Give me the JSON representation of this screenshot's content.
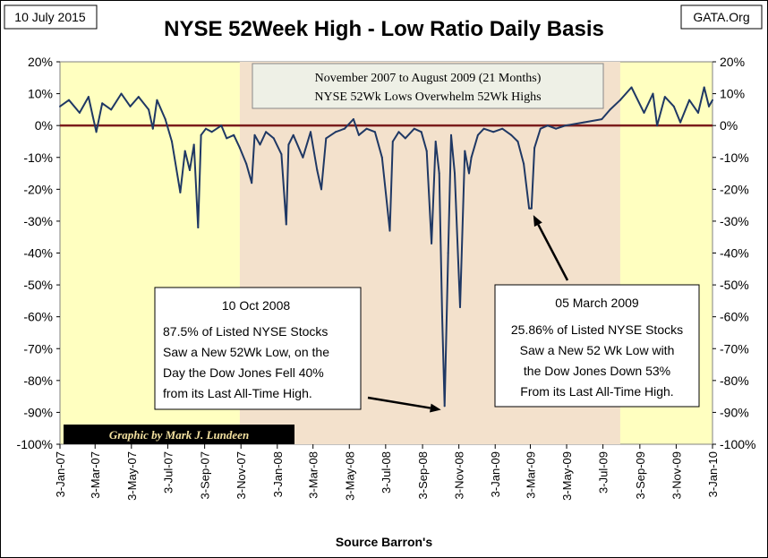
{
  "header": {
    "date_tag": "10 July 2015",
    "source_tag": "GATA.Org"
  },
  "chart_data": {
    "type": "line",
    "title": "NYSE 52Week High - Low Ratio Daily Basis",
    "xlabel": "Source Barron's",
    "ylabel": "",
    "ylim": [
      -100,
      20
    ],
    "xlim": [
      "2007-01-03",
      "2010-01-03"
    ],
    "y_ticks": [
      "20%",
      "10%",
      "0%",
      "-10%",
      "-20%",
      "-30%",
      "-40%",
      "-50%",
      "-60%",
      "-70%",
      "-80%",
      "-90%",
      "-100%"
    ],
    "x_ticks": [
      "3-Jan-07",
      "3-Mar-07",
      "3-May-07",
      "3-Jul-07",
      "3-Sep-07",
      "3-Nov-07",
      "3-Jan-08",
      "3-Mar-08",
      "3-May-08",
      "3-Jul-08",
      "3-Sep-08",
      "3-Nov-08",
      "3-Jan-09",
      "3-Mar-09",
      "3-May-09",
      "3-Jul-09",
      "3-Sep-09",
      "3-Nov-09",
      "3-Jan-10"
    ],
    "highlight_range": [
      "2007-11-01",
      "2009-08-01"
    ],
    "colors": {
      "plot_bg": "#ffffc0",
      "highlight": "#f3e1cc",
      "line": "#1f3864",
      "zero_line": "#7b1c1c"
    },
    "series": [
      {
        "x": [
          "2007-01-03",
          "2007-01-18",
          "2007-02-05",
          "2007-02-20",
          "2007-02-27",
          "2007-03-05",
          "2007-03-15",
          "2007-03-30",
          "2007-04-16",
          "2007-05-01",
          "2007-05-15",
          "2007-06-01",
          "2007-06-08",
          "2007-06-15",
          "2007-06-29",
          "2007-07-10",
          "2007-07-24",
          "2007-08-01",
          "2007-08-09",
          "2007-08-16",
          "2007-08-23",
          "2007-08-28",
          "2007-09-05",
          "2007-09-15",
          "2007-10-01",
          "2007-10-10",
          "2007-10-22",
          "2007-11-01",
          "2007-11-12",
          "2007-11-21",
          "2007-11-26",
          "2007-12-05",
          "2007-12-15",
          "2007-12-28",
          "2008-01-10",
          "2008-01-18",
          "2008-01-22",
          "2008-01-30",
          "2008-02-15",
          "2008-02-28",
          "2008-03-10",
          "2008-03-17",
          "2008-03-25",
          "2008-04-10",
          "2008-04-25",
          "2008-05-10",
          "2008-05-19",
          "2008-06-01",
          "2008-06-15",
          "2008-06-27",
          "2008-07-10",
          "2008-07-15",
          "2008-07-25",
          "2008-08-05",
          "2008-08-20",
          "2008-09-01",
          "2008-09-10",
          "2008-09-18",
          "2008-09-25",
          "2008-10-01",
          "2008-10-06",
          "2008-10-10",
          "2008-10-16",
          "2008-10-21",
          "2008-10-27",
          "2008-11-05",
          "2008-11-13",
          "2008-11-20",
          "2008-11-24",
          "2008-12-05",
          "2008-12-15",
          "2008-12-31",
          "2009-01-15",
          "2009-01-30",
          "2009-02-10",
          "2009-02-20",
          "2009-03-01",
          "2009-03-05",
          "2009-03-10",
          "2009-03-20",
          "2009-04-01",
          "2009-04-15",
          "2009-05-01",
          "2009-06-01",
          "2009-07-01",
          "2009-07-15",
          "2009-08-01",
          "2009-08-20",
          "2009-09-10",
          "2009-09-25",
          "2009-10-02",
          "2009-10-15",
          "2009-10-30",
          "2009-11-10",
          "2009-11-25",
          "2009-12-10",
          "2009-12-20",
          "2009-12-28",
          "2010-01-03"
        ],
        "values": [
          6,
          8,
          4,
          9,
          3,
          -2,
          7,
          5,
          10,
          6,
          9,
          5,
          -1,
          8,
          2,
          -5,
          -21,
          -8,
          -14,
          -6,
          -32,
          -3,
          -1,
          -2,
          0,
          -4,
          -3,
          -7,
          -12,
          -18,
          -3,
          -6,
          -2,
          -4,
          -9,
          -31,
          -6,
          -3,
          -10,
          -2,
          -14,
          -20,
          -4,
          -2,
          -1,
          2,
          -3,
          -1,
          -2,
          -10,
          -33,
          -5,
          -2,
          -4,
          -1,
          -2,
          -8,
          -37,
          -5,
          -15,
          -60,
          -88,
          -40,
          -3,
          -15,
          -57,
          -8,
          -15,
          -10,
          -3,
          -1,
          -2,
          -1,
          -3,
          -5,
          -12,
          -26,
          -26,
          -7,
          -1,
          0,
          -1,
          0,
          1,
          2,
          5,
          8,
          12,
          4,
          10,
          0,
          9,
          6,
          1,
          8,
          4,
          12,
          6,
          8
        ]
      }
    ],
    "banner_text": [
      "November 2007 to August 2009 (21 Months)",
      "NYSE 52Wk Lows Overwhelm 52Wk Highs"
    ],
    "annotation_left": {
      "title": "10 Oct 2008",
      "lines": [
        "87.5% of Listed NYSE Stocks",
        "Saw a New 52Wk Low, on the",
        "Day the Dow Jones Fell 40%",
        "from its Last All-Time High."
      ],
      "target_x": "2008-10-10",
      "target_y": -87.5
    },
    "annotation_right": {
      "title": "05 March 2009",
      "lines": [
        "25.86% of Listed NYSE Stocks",
        "Saw a New 52 Wk Low with",
        "the Dow Jones Down 53%",
        "From its Last All-Time High."
      ],
      "target_x": "2009-03-05",
      "target_y": -25.86
    },
    "credit": "Graphic by Mark J. Lundeen"
  }
}
